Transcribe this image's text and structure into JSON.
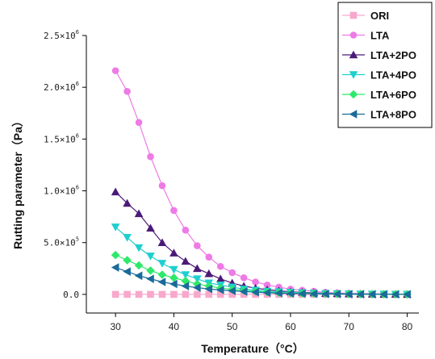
{
  "chart_data": {
    "type": "line",
    "xlabel": "Temperature（°C）",
    "ylabel": "Rutting parameter（Pa）",
    "xlim": [
      25,
      82
    ],
    "ylim": [
      -180000.0,
      2500000.0
    ],
    "xticks": [
      30,
      40,
      50,
      60,
      70,
      80
    ],
    "xtick_labels": [
      "30",
      "40",
      "50",
      "60",
      "70",
      "80"
    ],
    "yticks": [
      0,
      500000,
      1000000,
      1500000,
      2000000,
      2500000
    ],
    "ytick_labels": [
      {
        "mantissa": "0.0",
        "exp": ""
      },
      {
        "mantissa": "5.0×10",
        "exp": "5"
      },
      {
        "mantissa": "1.0×10",
        "exp": "6"
      },
      {
        "mantissa": "1.5×10",
        "exp": "6"
      },
      {
        "mantissa": "2.0×10",
        "exp": "6"
      },
      {
        "mantissa": "2.5×10",
        "exp": "6"
      }
    ],
    "legend_position": "top-right",
    "x": [
      30,
      32,
      34,
      36,
      38,
      40,
      42,
      44,
      46,
      48,
      50,
      52,
      54,
      56,
      58,
      60,
      62,
      64,
      66,
      68,
      70,
      72,
      74,
      76,
      78,
      80
    ],
    "series": [
      {
        "name": "ORI",
        "color": "#f8a8cc",
        "marker": "square",
        "values": [
          0,
          0,
          0,
          0,
          0,
          0,
          0,
          0,
          0,
          0,
          0,
          0,
          0,
          0,
          0,
          0,
          0,
          0,
          0,
          0,
          0,
          0,
          0,
          0,
          0,
          0
        ]
      },
      {
        "name": "LTA",
        "color": "#ee7ae6",
        "marker": "circle",
        "values": [
          2160000,
          1960000,
          1660000,
          1330000,
          1050000,
          810000,
          620000,
          470000,
          360000,
          270000,
          210000,
          160000,
          120000,
          90000,
          70000,
          50000,
          40000,
          30000,
          20000,
          15000,
          10000,
          8000,
          5000,
          4000,
          3000,
          2000
        ]
      },
      {
        "name": "LTA+2PO",
        "color": "#4b1a77",
        "marker": "triangle-up",
        "values": [
          990000,
          880000,
          780000,
          640000,
          500000,
          400000,
          320000,
          250000,
          200000,
          150000,
          110000,
          80000,
          60000,
          45000,
          35000,
          25000,
          20000,
          15000,
          10000,
          8000,
          6000,
          4000,
          3000,
          2000,
          1500,
          1000
        ]
      },
      {
        "name": "LTA+4PO",
        "color": "#1fcfcf",
        "marker": "triangle-down",
        "values": [
          650000,
          550000,
          450000,
          370000,
          300000,
          240000,
          190000,
          150000,
          110000,
          90000,
          70000,
          50000,
          40000,
          30000,
          25000,
          20000,
          15000,
          10000,
          8000,
          6000,
          4000,
          3000,
          2000,
          1500,
          1000,
          800
        ]
      },
      {
        "name": "LTA+6PO",
        "color": "#2ee86a",
        "marker": "diamond",
        "values": [
          380000,
          330000,
          280000,
          230000,
          190000,
          160000,
          130000,
          100000,
          80000,
          60000,
          48000,
          36000,
          28000,
          22000,
          16000,
          12000,
          9000,
          7000,
          5000,
          4000,
          3000,
          2000,
          1500,
          1000,
          800,
          600
        ]
      },
      {
        "name": "LTA+8PO",
        "color": "#1a6a9a",
        "marker": "triangle-left",
        "values": [
          260000,
          220000,
          180000,
          150000,
          120000,
          100000,
          80000,
          65000,
          52000,
          42000,
          34000,
          27000,
          21000,
          16000,
          12000,
          9000,
          7000,
          5000,
          4000,
          3000,
          2000,
          1500,
          1000,
          800,
          600,
          400
        ]
      }
    ]
  }
}
